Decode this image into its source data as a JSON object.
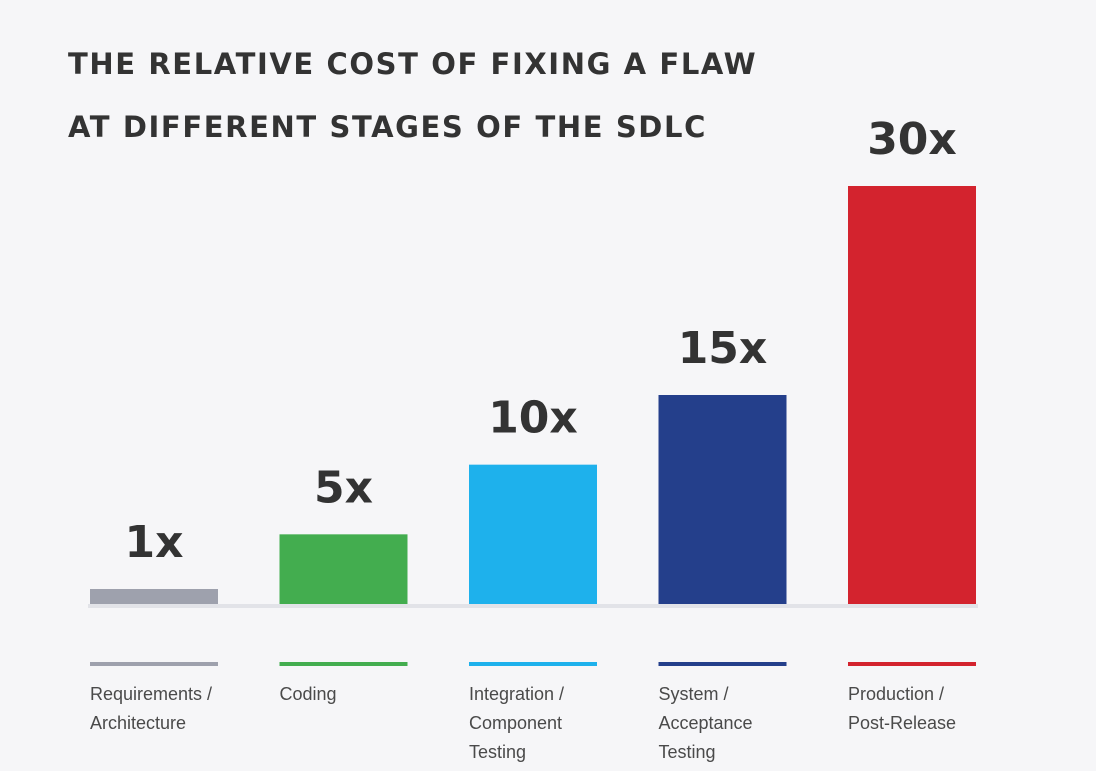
{
  "title_lines": [
    "THE RELATIVE COST OF FIXING A FLAW",
    "AT DIFFERENT STAGES OF THE SDLC"
  ],
  "chart_data": {
    "type": "bar",
    "title": "THE RELATIVE COST OF FIXING A FLAW AT DIFFERENT STAGES OF THE SDLC",
    "xlabel": "",
    "ylabel": "",
    "ylim": [
      0,
      30
    ],
    "grid": false,
    "categories": [
      "Requirements /\nArchitecture",
      "Coding",
      "Integration /\nComponent\nTesting",
      "System /\nAcceptance\nTesting",
      "Production /\nPost-Release"
    ],
    "values": [
      1,
      5,
      10,
      15,
      30
    ],
    "data_labels": [
      "1x",
      "5x",
      "10x",
      "15x",
      "30x"
    ],
    "colors": [
      "#9ea1ad",
      "#43ad4f",
      "#1eb1ec",
      "#243f8b",
      "#d3232e"
    ],
    "baseline_color": "#e2e3e8"
  }
}
